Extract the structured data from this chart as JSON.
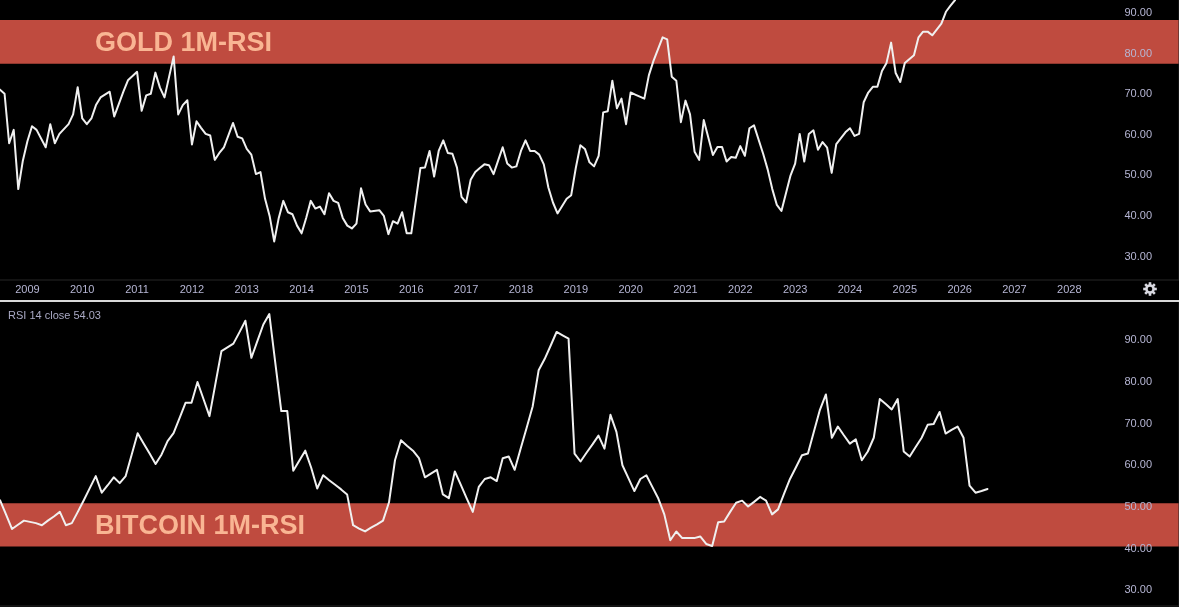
{
  "chart_data": [
    {
      "type": "line",
      "x": [
        "2008-07",
        "2008-08",
        "2008-09",
        "2008-10",
        "2008-11",
        "2008-12",
        "2009-01",
        "2009-02",
        "2009-03",
        "2009-05",
        "2009-06",
        "2009-07",
        "2009-08",
        "2009-10",
        "2009-11",
        "2009-12",
        "2010-01",
        "2010-02",
        "2010-03",
        "2010-04",
        "2010-05",
        "2010-07",
        "2010-08",
        "2010-10",
        "2010-11",
        "2011-01",
        "2011-02",
        "2011-03",
        "2011-04",
        "2011-05",
        "2011-06",
        "2011-07",
        "2011-09",
        "2011-10",
        "2011-11",
        "2011-12",
        "2012-01",
        "2012-02",
        "2012-03",
        "2012-04",
        "2012-05",
        "2012-06",
        "2012-07",
        "2012-08",
        "2012-10",
        "2012-11",
        "2012-12",
        "2013-01",
        "2013-02",
        "2013-03",
        "2013-04",
        "2013-05",
        "2013-06",
        "2013-07",
        "2013-08",
        "2013-09",
        "2013-10",
        "2013-11",
        "2013-12",
        "2014-01",
        "2014-02",
        "2014-03",
        "2014-04",
        "2014-05",
        "2014-06",
        "2014-07",
        "2014-08",
        "2014-09",
        "2014-10",
        "2014-11",
        "2014-12",
        "2015-01",
        "2015-02",
        "2015-03",
        "2015-04",
        "2015-06",
        "2015-07",
        "2015-08",
        "2015-09",
        "2015-10",
        "2015-11",
        "2015-12",
        "2016-01",
        "2016-03",
        "2016-04",
        "2016-05",
        "2016-06",
        "2016-07",
        "2016-08",
        "2016-09",
        "2016-10",
        "2016-11",
        "2016-12",
        "2017-01",
        "2017-02",
        "2017-03",
        "2017-04",
        "2017-05",
        "2017-06",
        "2017-07",
        "2017-08",
        "2017-09",
        "2017-10",
        "2017-11",
        "2017-12",
        "2018-01",
        "2018-02",
        "2018-03",
        "2018-04",
        "2018-05",
        "2018-06",
        "2018-07",
        "2018-08",
        "2018-09",
        "2018-11",
        "2018-12",
        "2019-01",
        "2019-02",
        "2019-03",
        "2019-04",
        "2019-05",
        "2019-06",
        "2019-07",
        "2019-08",
        "2019-09",
        "2019-10",
        "2019-11",
        "2019-12",
        "2020-01",
        "2020-02",
        "2020-04",
        "2020-05",
        "2020-06",
        "2020-08",
        "2020-09",
        "2020-10",
        "2020-11",
        "2020-12",
        "2021-01",
        "2021-02",
        "2021-03",
        "2021-04",
        "2021-05",
        "2021-07",
        "2021-08",
        "2021-09",
        "2021-10",
        "2021-11",
        "2021-12",
        "2022-01",
        "2022-02",
        "2022-03",
        "2022-04",
        "2022-06",
        "2022-07",
        "2022-08",
        "2022-09",
        "2022-10",
        "2022-12",
        "2023-01",
        "2023-02",
        "2023-03",
        "2023-04",
        "2023-05",
        "2023-06",
        "2023-07",
        "2023-08",
        "2023-09",
        "2023-10",
        "2023-12",
        "2024-01",
        "2024-02",
        "2024-03",
        "2024-04",
        "2024-05",
        "2024-06",
        "2024-07",
        "2024-08",
        "2024-09",
        "2024-10",
        "2024-11",
        "2024-12",
        "2025-01",
        "2025-03",
        "2025-04",
        "2025-05",
        "2025-06",
        "2025-07",
        "2025-09",
        "2025-10",
        "2025-11",
        "2025-12"
      ],
      "series": [
        {
          "color": "#f0f0f0",
          "values": [
            70.9,
            69.9,
            57.7,
            61,
            46.4,
            53.4,
            58.2,
            61.9,
            61,
            56.7,
            62.4,
            57.7,
            60,
            62.4,
            64.8,
            71.5,
            63.8,
            62.4,
            63.8,
            67.1,
            69,
            70.4,
            64.3,
            70.4,
            73.2,
            75.3,
            65.7,
            69.5,
            69.9,
            75.1,
            71.4,
            69,
            79.1,
            64.8,
            67.1,
            68.3,
            57.4,
            63.1,
            61.5,
            60,
            59.6,
            53.6,
            55.3,
            56.7,
            62.7,
            59.3,
            58.9,
            56.3,
            54.9,
            50.1,
            50.6,
            44,
            39.8,
            33.5,
            39.3,
            43.5,
            40.7,
            40.2,
            37.4,
            35.5,
            39.3,
            43.5,
            41.6,
            42.1,
            40.2,
            45.4,
            43.5,
            43,
            39.3,
            37.4,
            36.7,
            37.9,
            46.6,
            42.6,
            40.9,
            41.2,
            39.8,
            35.3,
            38.5,
            37.9,
            40.7,
            35.5,
            35.5,
            51.6,
            51.7,
            55.8,
            49.5,
            55.8,
            58.4,
            55.3,
            55.1,
            51.7,
            44.5,
            43.1,
            48.7,
            50.6,
            51.6,
            52.5,
            52.3,
            50.1,
            53.4,
            56.7,
            52.7,
            51.7,
            52,
            55.8,
            58.4,
            55.8,
            55.8,
            54.9,
            52.5,
            46.8,
            43.1,
            40.4,
            44,
            44.9,
            51.6,
            57.2,
            56.3,
            53,
            52,
            54.6,
            65.3,
            65.6,
            73.1,
            66.3,
            68.7,
            62.4,
            70.2,
            69.7,
            68.7,
            74.5,
            78,
            83.8,
            83.3,
            74.1,
            73.1,
            62.9,
            68.2,
            64.8,
            55.6,
            53.6,
            63.4,
            54.8,
            56.8,
            56.8,
            53.2,
            54.3,
            54.1,
            57,
            54.6,
            61.4,
            62.1,
            55.1,
            51.2,
            46.4,
            42.5,
            41,
            49.8,
            52.7,
            60,
            53.2,
            60,
            60.9,
            56.1,
            58,
            56.6,
            50.4,
            57.5,
            60.4,
            61.4,
            59.5,
            60,
            67.8,
            70.2,
            71.6,
            71.6,
            75.5,
            77.5,
            82.5,
            75,
            72.8,
            77.5,
            79.4,
            83.8,
            85.2,
            85.2,
            84.3,
            87.2,
            90.1,
            91.6,
            93
          ]
        }
      ],
      "xlim": [
        "2008-07",
        "2030-01"
      ],
      "xticks": [
        "2009",
        "2010",
        "2011",
        "2012",
        "2013",
        "2014",
        "2015",
        "2016",
        "2017",
        "2018",
        "2019",
        "2020",
        "2021",
        "2022",
        "2023",
        "2024",
        "2025",
        "2026",
        "2027",
        "2028"
      ],
      "ylim": [
        24,
        93
      ],
      "yticks": [
        {
          "value": 30,
          "label": "30.00"
        },
        {
          "value": 40,
          "label": "40.00"
        },
        {
          "value": 50,
          "label": "50.00"
        },
        {
          "value": 60,
          "label": "60.00"
        },
        {
          "value": 70,
          "label": "70.00"
        },
        {
          "value": 80,
          "label": "80.00"
        },
        {
          "value": 90,
          "label": "90.00"
        }
      ],
      "bands": [
        {
          "axis": "y",
          "from": 77.3,
          "to": 88.1,
          "label": "GOLD 1M-RSI",
          "color": "#bf4b3f"
        }
      ],
      "marker": "none"
    },
    {
      "type": "line",
      "categories": [
        null,
        null,
        null,
        null,
        null,
        null,
        null,
        null,
        null,
        null,
        null,
        null,
        null,
        null,
        null,
        null,
        null,
        null,
        null,
        null,
        null,
        null,
        null,
        null,
        null,
        null,
        null,
        null,
        null,
        null,
        null,
        null,
        null,
        null,
        null,
        null,
        null,
        null,
        null,
        null,
        null,
        null,
        null,
        null,
        null,
        null,
        null,
        null,
        null,
        null,
        null,
        null,
        null,
        null,
        null,
        null,
        null,
        null,
        null,
        null,
        null,
        null,
        null,
        null,
        null,
        null,
        null,
        null,
        null,
        null,
        null,
        null,
        null,
        null,
        null,
        null,
        null,
        null,
        null,
        null,
        null,
        null,
        null,
        null,
        null,
        null,
        null,
        null,
        null,
        null,
        null,
        null,
        null,
        null,
        null,
        null,
        null,
        null,
        null,
        null,
        null,
        null,
        null,
        null,
        null,
        null,
        null,
        null,
        null,
        null,
        null,
        null,
        null,
        null,
        null,
        null,
        null,
        null,
        null,
        null,
        null,
        null,
        null,
        null,
        null,
        null,
        null,
        null,
        null,
        null,
        null,
        null,
        null,
        null,
        null,
        null,
        null,
        null,
        null,
        null,
        null,
        null,
        null,
        null,
        null,
        null,
        null,
        null,
        null,
        null,
        null,
        null,
        null,
        null,
        null,
        null,
        null,
        null,
        null,
        null,
        null,
        null,
        null,
        null,
        null,
        null,
        null,
        null,
        null,
        null,
        null,
        null,
        null,
        null,
        null,
        null,
        null,
        null,
        null,
        null,
        null,
        null,
        null,
        null,
        null,
        null,
        null,
        null,
        null,
        null,
        null,
        null,
        null,
        null,
        null,
        null,
        null,
        null
      ],
      "series": [
        {
          "color": "#f0f0f0",
          "values": [
            51.4,
            48,
            44.5,
            45.5,
            46.5,
            46.2,
            45.9,
            45.4,
            46.5,
            47.5,
            48.6,
            45.4,
            45.9,
            48.6,
            51.4,
            54.3,
            57.2,
            53.2,
            55,
            56.9,
            55.5,
            57.2,
            62.3,
            67.5,
            65,
            62.6,
            60.1,
            62.4,
            65.6,
            67.5,
            71.1,
            74.8,
            74.8,
            79.8,
            75.7,
            71.6,
            79.4,
            87.2,
            88.1,
            89,
            91.7,
            94.5,
            85.6,
            89.6,
            93.6,
            96.1,
            84.4,
            72.8,
            72.8,
            58.5,
            60.9,
            63.3,
            59.2,
            54.2,
            57.4,
            56.2,
            55.1,
            54,
            52.8,
            45.4,
            44.6,
            43.9,
            44.8,
            45.6,
            46.5,
            50.9,
            61,
            65.8,
            64.5,
            63.3,
            61.5,
            56.9,
            57.8,
            58.7,
            52.8,
            51.9,
            58.3,
            55.1,
            51.8,
            48.6,
            54.6,
            56.5,
            56.9,
            56,
            61.5,
            61.9,
            58.7,
            63.8,
            68.8,
            73.9,
            82.6,
            85.3,
            88.5,
            91.8,
            91,
            90.2,
            62.6,
            60.7,
            62.8,
            64.8,
            66.9,
            63.8,
            71.9,
            67.8,
            59.8,
            56.7,
            53.6,
            56.5,
            57.4,
            54.6,
            51.8,
            48,
            41.8,
            43.9,
            42.3,
            42.3,
            42.3,
            42.7,
            40.9,
            40.4,
            46.1,
            46.3,
            48.6,
            50.8,
            51.3,
            49.9,
            51,
            52.2,
            51.3,
            48,
            49.2,
            52.9,
            56.5,
            59.3,
            62.2,
            62.6,
            67.9,
            73.1,
            76.8,
            66.4,
            69.1,
            67,
            65,
            66,
            61,
            63.1,
            66.4,
            75.7,
            74.5,
            73.2,
            75.7,
            63.1,
            61.9,
            64.2,
            66.4,
            69.5,
            69.7,
            72.6,
            67.4,
            68.3,
            69.1,
            66.4,
            54.9,
            53.2,
            53.6,
            54.1,
            null,
            null,
            null,
            null,
            null,
            null,
            null,
            null,
            null,
            null,
            null,
            null,
            null,
            null,
            null,
            null,
            null,
            null,
            null,
            null,
            null,
            null,
            null,
            null,
            null,
            null,
            null,
            null,
            null,
            null,
            null,
            null
          ]
        }
      ],
      "ylim": [
        26,
        99
      ],
      "yticks": [
        {
          "value": 30,
          "label": "30.00"
        },
        {
          "value": 40,
          "label": "40.00"
        },
        {
          "value": 50,
          "label": "50.00"
        },
        {
          "value": 60,
          "label": "60.00"
        },
        {
          "value": 70,
          "label": "70.00"
        },
        {
          "value": 80,
          "label": "80.00"
        },
        {
          "value": 90,
          "label": "90.00"
        }
      ],
      "bands": [
        {
          "axis": "y",
          "from": 40.3,
          "to": 50.7,
          "label": "BITCOIN 1M-RSI",
          "color": "#bf4b3f"
        }
      ],
      "annotations": [
        "RSI 14 close 54.03"
      ],
      "tick_labels": "y",
      "marker": "none"
    }
  ]
}
